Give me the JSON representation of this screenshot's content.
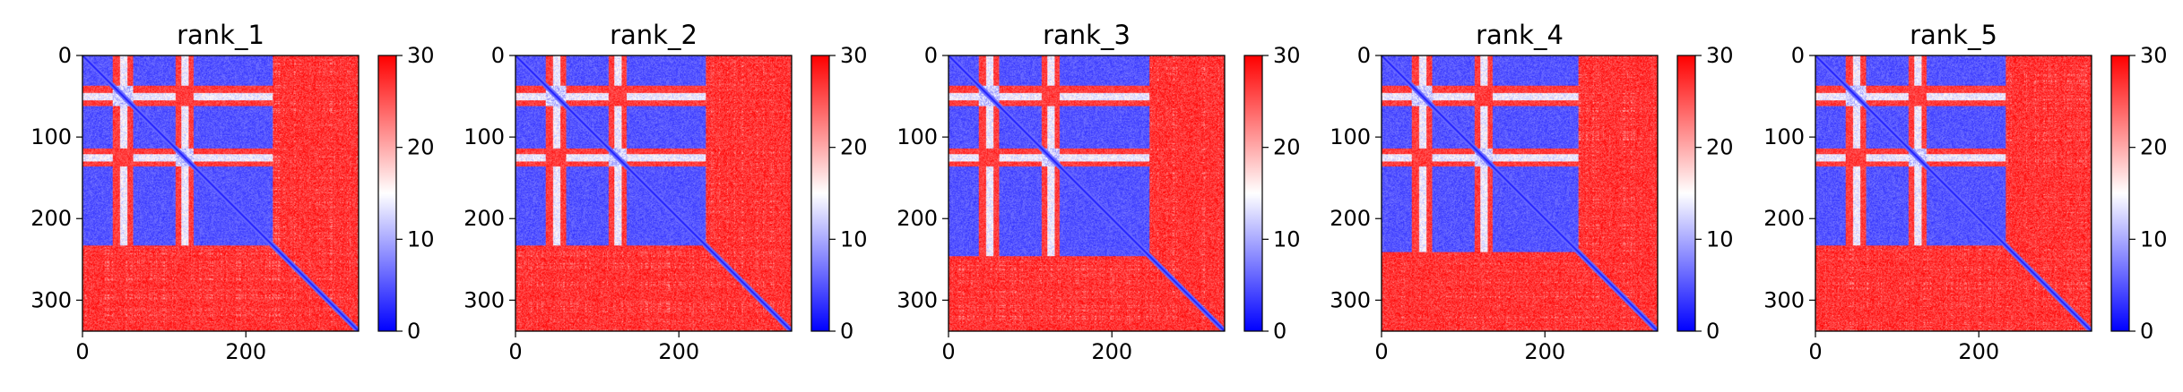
{
  "chart_data": [
    {
      "type": "heatmap",
      "title": "rank_1",
      "x_ticks": [
        0,
        200
      ],
      "y_ticks": [
        0,
        100,
        200,
        300
      ],
      "xlim": [
        0,
        338
      ],
      "ylim": [
        338,
        0
      ],
      "colorbar": {
        "ticks": [
          0,
          10,
          20,
          30
        ],
        "range": [
          0,
          30
        ],
        "colormap": "bwr"
      },
      "colors": {
        "low": "#0000ff",
        "mid": "#ffffff",
        "high": "#ff0000"
      },
      "n": 338,
      "blue_blocks": [
        [
          0,
          36
        ],
        [
          62,
          113
        ],
        [
          136,
          232
        ]
      ],
      "red_gaps": [
        [
          37,
          61
        ],
        [
          114,
          135
        ]
      ],
      "white_lines": [
        50,
        125
      ],
      "tail_red_start": 233
    },
    {
      "type": "heatmap",
      "title": "rank_2",
      "x_ticks": [
        0,
        200
      ],
      "y_ticks": [
        0,
        100,
        200,
        300
      ],
      "xlim": [
        0,
        338
      ],
      "ylim": [
        338,
        0
      ],
      "colorbar": {
        "ticks": [
          0,
          10,
          20,
          30
        ],
        "range": [
          0,
          30
        ],
        "colormap": "bwr"
      },
      "colors": {
        "low": "#0000ff",
        "mid": "#ffffff",
        "high": "#ff0000"
      },
      "n": 338,
      "blue_blocks": [
        [
          0,
          36
        ],
        [
          62,
          113
        ],
        [
          136,
          232
        ]
      ],
      "red_gaps": [
        [
          37,
          61
        ],
        [
          114,
          135
        ]
      ],
      "white_lines": [
        50,
        125
      ],
      "tail_red_start": 233
    },
    {
      "type": "heatmap",
      "title": "rank_3",
      "x_ticks": [
        0,
        200
      ],
      "y_ticks": [
        0,
        100,
        200,
        300
      ],
      "xlim": [
        0,
        338
      ],
      "ylim": [
        338,
        0
      ],
      "colorbar": {
        "ticks": [
          0,
          10,
          20,
          30
        ],
        "range": [
          0,
          30
        ],
        "colormap": "bwr"
      },
      "colors": {
        "low": "#0000ff",
        "mid": "#ffffff",
        "high": "#ff0000"
      },
      "n": 338,
      "blue_blocks": [
        [
          0,
          36
        ],
        [
          62,
          113
        ],
        [
          136,
          245
        ]
      ],
      "red_gaps": [
        [
          37,
          61
        ],
        [
          114,
          135
        ]
      ],
      "white_lines": [
        50,
        125
      ],
      "tail_red_start": 246
    },
    {
      "type": "heatmap",
      "title": "rank_4",
      "x_ticks": [
        0,
        200
      ],
      "y_ticks": [
        0,
        100,
        200,
        300
      ],
      "xlim": [
        0,
        338
      ],
      "ylim": [
        338,
        0
      ],
      "colorbar": {
        "ticks": [
          0,
          10,
          20,
          30
        ],
        "range": [
          0,
          30
        ],
        "colormap": "bwr"
      },
      "colors": {
        "low": "#0000ff",
        "mid": "#ffffff",
        "high": "#ff0000"
      },
      "n": 338,
      "blue_blocks": [
        [
          0,
          36
        ],
        [
          62,
          113
        ],
        [
          136,
          240
        ]
      ],
      "red_gaps": [
        [
          37,
          61
        ],
        [
          114,
          135
        ]
      ],
      "white_lines": [
        50,
        125
      ],
      "tail_red_start": 241
    },
    {
      "type": "heatmap",
      "title": "rank_5",
      "x_ticks": [
        0,
        200
      ],
      "y_ticks": [
        0,
        100,
        200,
        300
      ],
      "xlim": [
        0,
        338
      ],
      "ylim": [
        338,
        0
      ],
      "colorbar": {
        "ticks": [
          0,
          10,
          20,
          30
        ],
        "range": [
          0,
          30
        ],
        "colormap": "bwr"
      },
      "colors": {
        "low": "#0000ff",
        "mid": "#ffffff",
        "high": "#ff0000"
      },
      "n": 338,
      "blue_blocks": [
        [
          0,
          36
        ],
        [
          62,
          113
        ],
        [
          136,
          232
        ]
      ],
      "red_gaps": [
        [
          37,
          61
        ],
        [
          114,
          135
        ]
      ],
      "white_lines": [
        50,
        125
      ],
      "tail_red_start": 233
    }
  ]
}
